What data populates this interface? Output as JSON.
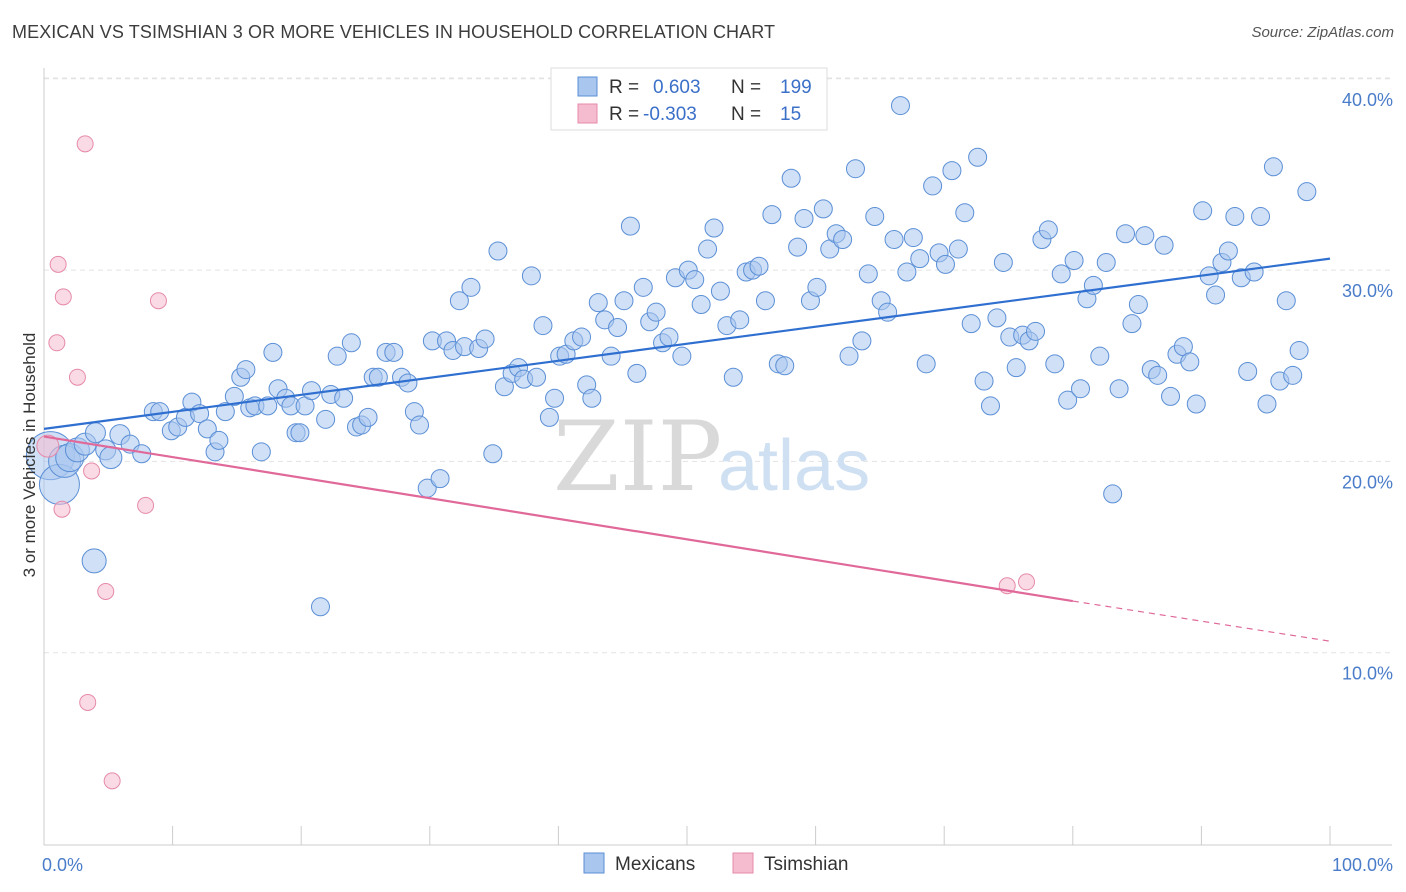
{
  "title": "MEXICAN VS TSIMSHIAN 3 OR MORE VEHICLES IN HOUSEHOLD CORRELATION CHART",
  "source": "Source: ZipAtlas.com",
  "watermark": {
    "zip": "ZIP",
    "atlas": "atlas"
  },
  "colors": {
    "blue_fill": "#a9c6ee",
    "blue_stroke": "#5b8fd6",
    "blue_line": "#2f6fd0",
    "pink_fill": "#f5bcd0",
    "pink_stroke": "#e58aa9",
    "pink_line": "#e0699a",
    "grid": "#e3e3e3",
    "tick_text": "#4a7cc9"
  },
  "legend": {
    "rows": [
      {
        "r_label": "R =",
        "r_value": "0.603",
        "n_label": "N =",
        "n_value": "199",
        "color": "blue"
      },
      {
        "r_label": "R =",
        "r_value": "-0.303",
        "n_label": "N =",
        "n_value": "15",
        "color": "pink"
      }
    ]
  },
  "bottom_legend": [
    {
      "label": "Mexicans",
      "color": "blue"
    },
    {
      "label": "Tsimshian",
      "color": "pink"
    }
  ],
  "chart_data": {
    "type": "scatter",
    "title": "MEXICAN VS TSIMSHIAN 3 OR MORE VEHICLES IN HOUSEHOLD CORRELATION CHART",
    "xlabel": "",
    "ylabel": "3 or more Vehicles in Household",
    "xlim": [
      0,
      100
    ],
    "ylim": [
      0,
      41
    ],
    "x_ticks": [
      {
        "value": 0,
        "label": "0.0%"
      },
      {
        "value": 100,
        "label": "100.0%"
      }
    ],
    "y_ticks": [
      {
        "value": 10,
        "label": "10.0%"
      },
      {
        "value": 20,
        "label": "20.0%"
      },
      {
        "value": 30,
        "label": "30.0%"
      },
      {
        "value": 40,
        "label": "40.0%"
      }
    ],
    "grid": true,
    "legend_position": "top-center",
    "series": [
      {
        "name": "Mexicans",
        "color": "blue",
        "regression": {
          "x": [
            0,
            100
          ],
          "y": [
            21.7,
            30.6
          ]
        },
        "points": [
          [
            0.5,
            20.3,
            24
          ],
          [
            1.2,
            18.8,
            20
          ],
          [
            1.6,
            20.0,
            16
          ],
          [
            2.0,
            20.2,
            14
          ],
          [
            2.6,
            20.6,
            12
          ],
          [
            3.2,
            20.9,
            11
          ],
          [
            4.0,
            21.5,
            10
          ],
          [
            4.8,
            20.6,
            10
          ],
          [
            5.2,
            20.2,
            11
          ],
          [
            5.9,
            21.4,
            10
          ],
          [
            6.7,
            20.9,
            9
          ],
          [
            7.6,
            20.4,
            9
          ],
          [
            3.9,
            14.8,
            12
          ],
          [
            8.5,
            22.6,
            9
          ],
          [
            9.0,
            22.6,
            9
          ],
          [
            9.9,
            21.6,
            9
          ],
          [
            10.4,
            21.8,
            9
          ],
          [
            11.0,
            22.3,
            9
          ],
          [
            11.5,
            23.1,
            9
          ],
          [
            12.1,
            22.5,
            9
          ],
          [
            12.7,
            21.7,
            9
          ],
          [
            13.3,
            20.5,
            9
          ],
          [
            13.6,
            21.1,
            9
          ],
          [
            14.1,
            22.6,
            9
          ],
          [
            14.8,
            23.4,
            9
          ],
          [
            15.3,
            24.4,
            9
          ],
          [
            15.7,
            24.8,
            9
          ],
          [
            16.0,
            22.8,
            9
          ],
          [
            16.4,
            22.9,
            9
          ],
          [
            16.9,
            20.5,
            9
          ],
          [
            17.4,
            22.9,
            9
          ],
          [
            17.8,
            25.7,
            9
          ],
          [
            18.2,
            23.8,
            9
          ],
          [
            18.8,
            23.3,
            9
          ],
          [
            19.2,
            22.9,
            9
          ],
          [
            19.6,
            21.5,
            9
          ],
          [
            19.9,
            21.5,
            9
          ],
          [
            20.3,
            22.9,
            9
          ],
          [
            20.8,
            23.7,
            9
          ],
          [
            21.5,
            12.4,
            9
          ],
          [
            21.9,
            22.2,
            9
          ],
          [
            22.3,
            23.5,
            9
          ],
          [
            22.8,
            25.5,
            9
          ],
          [
            23.3,
            23.3,
            9
          ],
          [
            23.9,
            26.2,
            9
          ],
          [
            24.3,
            21.8,
            9
          ],
          [
            24.7,
            21.9,
            9
          ],
          [
            25.2,
            22.3,
            9
          ],
          [
            25.6,
            24.4,
            9
          ],
          [
            26.0,
            24.4,
            9
          ],
          [
            26.6,
            25.7,
            9
          ],
          [
            27.2,
            25.7,
            9
          ],
          [
            27.8,
            24.4,
            9
          ],
          [
            28.3,
            24.1,
            9
          ],
          [
            28.8,
            22.6,
            9
          ],
          [
            29.2,
            21.9,
            9
          ],
          [
            29.8,
            18.6,
            9
          ],
          [
            30.2,
            26.3,
            9
          ],
          [
            30.8,
            19.1,
            9
          ],
          [
            31.3,
            26.3,
            9
          ],
          [
            31.8,
            25.8,
            9
          ],
          [
            32.3,
            28.4,
            9
          ],
          [
            32.7,
            26.0,
            9
          ],
          [
            33.2,
            29.1,
            9
          ],
          [
            33.8,
            25.9,
            9
          ],
          [
            34.3,
            26.4,
            9
          ],
          [
            34.9,
            20.4,
            9
          ],
          [
            35.3,
            31.0,
            9
          ],
          [
            35.8,
            23.9,
            9
          ],
          [
            36.4,
            24.6,
            9
          ],
          [
            36.9,
            24.9,
            9
          ],
          [
            37.3,
            24.3,
            9
          ],
          [
            37.9,
            29.7,
            9
          ],
          [
            38.3,
            24.4,
            9
          ],
          [
            38.8,
            27.1,
            9
          ],
          [
            39.3,
            22.3,
            9
          ],
          [
            39.7,
            23.3,
            9
          ],
          [
            40.1,
            25.5,
            9
          ],
          [
            40.6,
            25.6,
            9
          ],
          [
            41.2,
            26.3,
            9
          ],
          [
            41.8,
            26.5,
            9
          ],
          [
            42.2,
            24.0,
            9
          ],
          [
            42.6,
            23.3,
            9
          ],
          [
            43.1,
            28.3,
            9
          ],
          [
            43.6,
            27.4,
            9
          ],
          [
            44.1,
            25.5,
            9
          ],
          [
            44.6,
            27.0,
            9
          ],
          [
            45.1,
            28.4,
            9
          ],
          [
            45.6,
            32.3,
            9
          ],
          [
            46.1,
            24.6,
            9
          ],
          [
            46.6,
            29.1,
            9
          ],
          [
            47.1,
            27.3,
            9
          ],
          [
            47.6,
            27.8,
            9
          ],
          [
            48.1,
            26.2,
            9
          ],
          [
            48.6,
            26.5,
            9
          ],
          [
            49.1,
            29.6,
            9
          ],
          [
            49.6,
            25.5,
            9
          ],
          [
            50.1,
            30.0,
            9
          ],
          [
            50.6,
            29.5,
            9
          ],
          [
            51.1,
            28.2,
            9
          ],
          [
            51.6,
            31.1,
            9
          ],
          [
            52.1,
            32.2,
            9
          ],
          [
            52.6,
            28.9,
            9
          ],
          [
            53.1,
            27.1,
            9
          ],
          [
            53.6,
            24.4,
            9
          ],
          [
            54.1,
            27.4,
            9
          ],
          [
            54.6,
            29.9,
            9
          ],
          [
            55.1,
            30.0,
            9
          ],
          [
            55.6,
            30.2,
            9
          ],
          [
            56.1,
            28.4,
            9
          ],
          [
            56.6,
            32.9,
            9
          ],
          [
            57.1,
            25.1,
            9
          ],
          [
            57.6,
            25.0,
            9
          ],
          [
            58.1,
            34.8,
            9
          ],
          [
            58.6,
            31.2,
            9
          ],
          [
            59.1,
            32.7,
            9
          ],
          [
            59.6,
            28.4,
            9
          ],
          [
            60.1,
            29.1,
            9
          ],
          [
            60.6,
            33.2,
            9
          ],
          [
            61.1,
            31.1,
            9
          ],
          [
            61.6,
            31.9,
            9
          ],
          [
            62.1,
            31.6,
            9
          ],
          [
            62.6,
            25.5,
            9
          ],
          [
            63.1,
            35.3,
            9
          ],
          [
            63.6,
            26.3,
            9
          ],
          [
            64.1,
            29.8,
            9
          ],
          [
            64.6,
            32.8,
            9
          ],
          [
            65.1,
            28.4,
            9
          ],
          [
            65.6,
            27.8,
            9
          ],
          [
            66.1,
            31.6,
            9
          ],
          [
            66.6,
            38.6,
            9
          ],
          [
            67.1,
            29.9,
            9
          ],
          [
            67.6,
            31.7,
            9
          ],
          [
            68.1,
            30.6,
            9
          ],
          [
            68.6,
            25.1,
            9
          ],
          [
            69.1,
            34.4,
            9
          ],
          [
            69.6,
            30.9,
            9
          ],
          [
            70.1,
            30.3,
            9
          ],
          [
            70.6,
            35.2,
            9
          ],
          [
            71.1,
            31.1,
            9
          ],
          [
            71.6,
            33.0,
            9
          ],
          [
            72.1,
            27.2,
            9
          ],
          [
            72.6,
            35.9,
            9
          ],
          [
            73.1,
            24.2,
            9
          ],
          [
            73.6,
            22.9,
            9
          ],
          [
            74.1,
            27.5,
            9
          ],
          [
            74.6,
            30.4,
            9
          ],
          [
            75.1,
            26.5,
            9
          ],
          [
            75.6,
            24.9,
            9
          ],
          [
            76.1,
            26.6,
            9
          ],
          [
            76.6,
            26.3,
            9
          ],
          [
            77.1,
            26.8,
            9
          ],
          [
            77.6,
            31.6,
            9
          ],
          [
            78.1,
            32.1,
            9
          ],
          [
            78.6,
            25.1,
            9
          ],
          [
            79.1,
            29.8,
            9
          ],
          [
            79.6,
            23.2,
            9
          ],
          [
            80.1,
            30.5,
            9
          ],
          [
            80.6,
            23.8,
            9
          ],
          [
            81.1,
            28.5,
            9
          ],
          [
            81.6,
            29.2,
            9
          ],
          [
            82.1,
            25.5,
            9
          ],
          [
            82.6,
            30.4,
            9
          ],
          [
            83.1,
            18.3,
            9
          ],
          [
            83.6,
            23.8,
            9
          ],
          [
            84.1,
            31.9,
            9
          ],
          [
            84.6,
            27.2,
            9
          ],
          [
            85.1,
            28.2,
            9
          ],
          [
            85.6,
            31.8,
            9
          ],
          [
            86.1,
            24.8,
            9
          ],
          [
            86.6,
            24.5,
            9
          ],
          [
            87.1,
            31.3,
            9
          ],
          [
            87.6,
            23.4,
            9
          ],
          [
            88.1,
            25.6,
            9
          ],
          [
            88.6,
            26.0,
            9
          ],
          [
            89.1,
            25.2,
            9
          ],
          [
            89.6,
            23.0,
            9
          ],
          [
            90.1,
            33.1,
            9
          ],
          [
            90.6,
            29.7,
            9
          ],
          [
            91.1,
            28.7,
            9
          ],
          [
            91.6,
            30.4,
            9
          ],
          [
            92.1,
            31.0,
            9
          ],
          [
            92.6,
            32.8,
            9
          ],
          [
            93.1,
            29.6,
            9
          ],
          [
            93.6,
            24.7,
            9
          ],
          [
            94.1,
            29.9,
            9
          ],
          [
            94.6,
            32.8,
            9
          ],
          [
            95.1,
            23.0,
            9
          ],
          [
            95.6,
            35.4,
            9
          ],
          [
            96.1,
            24.2,
            9
          ],
          [
            96.6,
            28.4,
            9
          ],
          [
            97.1,
            24.5,
            9
          ],
          [
            97.6,
            25.8,
            9
          ],
          [
            98.2,
            34.1,
            9
          ]
        ]
      },
      {
        "name": "Tsimshian",
        "color": "pink",
        "regression": {
          "x": [
            0,
            80
          ],
          "y": [
            21.3,
            12.7
          ],
          "dashed_to": {
            "x": 100,
            "y": 10.6
          }
        },
        "points": [
          [
            0.3,
            20.8,
            11
          ],
          [
            1.4,
            17.5,
            8
          ],
          [
            1.0,
            26.2,
            8
          ],
          [
            1.1,
            30.3,
            8
          ],
          [
            1.5,
            28.6,
            8
          ],
          [
            2.6,
            24.4,
            8
          ],
          [
            3.2,
            36.6,
            8
          ],
          [
            3.7,
            19.5,
            8
          ],
          [
            3.4,
            7.4,
            8
          ],
          [
            4.8,
            13.2,
            8
          ],
          [
            5.3,
            3.3,
            8
          ],
          [
            7.9,
            17.7,
            8
          ],
          [
            8.9,
            28.4,
            8
          ],
          [
            74.9,
            13.5,
            8
          ],
          [
            76.4,
            13.7,
            8
          ]
        ]
      }
    ]
  }
}
